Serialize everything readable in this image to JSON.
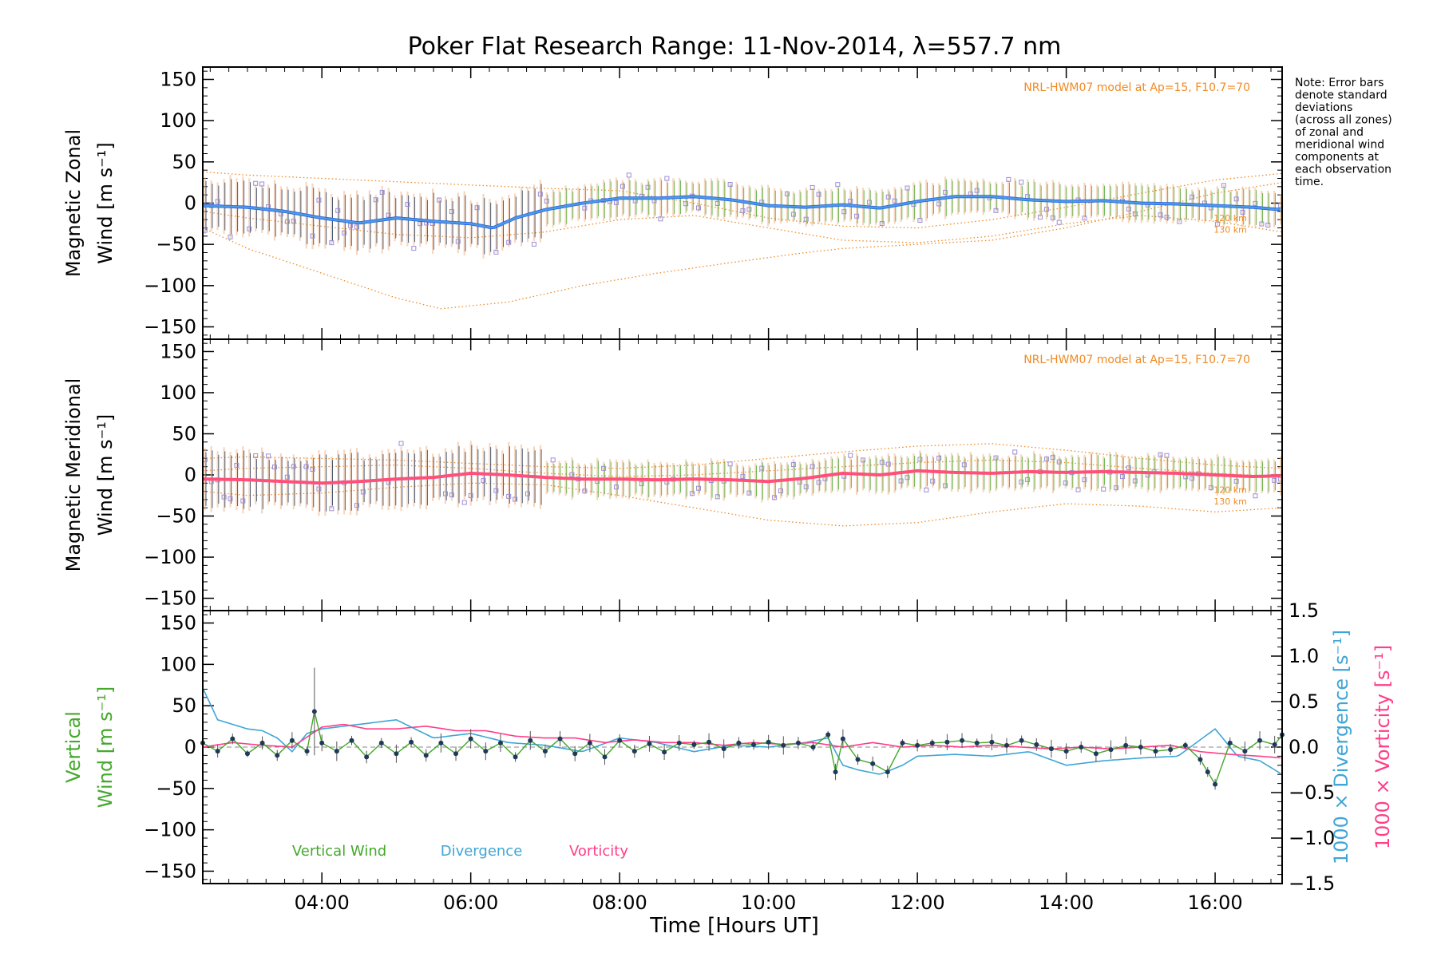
{
  "chart_data": {
    "type": "line",
    "title": "Poker Flat Research Range: 11-Nov-2014, λ=557.7 nm",
    "xlabel": "Time [Hours UT]",
    "xlim": [
      2.4,
      16.9
    ],
    "x_tick_labels": [
      "04:00",
      "06:00",
      "08:00",
      "10:00",
      "12:00",
      "14:00",
      "16:00"
    ],
    "x_tick_values": [
      4,
      6,
      8,
      10,
      12,
      14,
      16
    ],
    "colors": {
      "zonal": "#1f5fe0",
      "zonal_light": "#5aa8e6",
      "meridional": "#ff4f7b",
      "vertical": "#44a82b",
      "divergence": "#3fa5d6",
      "vorticity": "#ff3d88",
      "model": "#f08a24",
      "zone_points": "#9a8fd8",
      "errorbar_dark": "#20385a"
    },
    "note": [
      "Note: Error bars",
      "denote standard",
      "deviations",
      "(across all zones)",
      "of zonal and",
      "meridional wind",
      "components at",
      "each observation",
      "time."
    ],
    "panels": [
      {
        "name": "zonal",
        "ylabel_line1": "Magnetic Zonal",
        "ylabel_line2": "Wind [m s⁻¹]",
        "ylim": [
          -165,
          165
        ],
        "y_tick_labels": [
          "150",
          "100",
          "50",
          "0",
          "−50",
          "−100",
          "−150"
        ],
        "y_tick_values": [
          150,
          100,
          50,
          0,
          -50,
          -100,
          -150
        ],
        "model_label": "NRL-HWM07 model at Ap=15, F10.7=70",
        "km_labels": [
          "120 km",
          "130 km"
        ],
        "series": [
          {
            "x": [
              2.4,
              3.0,
              3.5,
              4.0,
              4.5,
              5.0,
              5.5,
              6.0,
              6.3,
              6.6,
              7.0,
              7.5,
              8.0,
              8.5,
              9.0,
              9.5,
              10.0,
              10.5,
              11.0,
              11.5,
              12.0,
              12.5,
              13.0,
              13.5,
              14.0,
              14.5,
              15.0,
              15.5,
              16.0,
              16.5,
              16.9
            ],
            "y": [
              -3,
              -5,
              -10,
              -18,
              -24,
              -18,
              -22,
              -25,
              -30,
              -18,
              -8,
              0,
              6,
              6,
              8,
              4,
              -3,
              -5,
              -2,
              -6,
              2,
              8,
              8,
              4,
              2,
              3,
              0,
              -1,
              -3,
              -5,
              -8
            ]
          }
        ],
        "model_curves": [
          {
            "x": [
              2.4,
              3.0,
              4.0,
              5.0,
              5.6,
              6.5,
              7.5,
              8.5,
              9.5,
              10.5,
              11.0,
              12.0,
              13.0,
              14.0,
              15.0,
              16.0,
              16.9
            ],
            "y": [
              -30,
              -55,
              -85,
              -115,
              -128,
              -120,
              -100,
              -85,
              -72,
              -60,
              -55,
              -50,
              -45,
              -30,
              -10,
              12,
              25
            ]
          },
          {
            "x": [
              2.4,
              3.0,
              4.0,
              5.0,
              6.0,
              7.0,
              8.0,
              9.0,
              10.0,
              11.0,
              12.0,
              13.0,
              14.0,
              15.0,
              16.0,
              16.9
            ],
            "y": [
              38,
              34,
              30,
              26,
              22,
              18,
              15,
              0,
              -18,
              -28,
              -30,
              -20,
              -5,
              12,
              28,
              36
            ]
          },
          {
            "x": [
              2.4,
              3.0,
              4.0,
              5.0,
              6.0,
              7.0,
              8.0,
              9.0,
              10.0,
              11.0,
              12.0,
              13.0,
              14.0,
              15.0,
              16.0,
              16.9
            ],
            "y": [
              -10,
              -18,
              -28,
              -38,
              -42,
              -35,
              -20,
              -15,
              -30,
              -45,
              -48,
              -40,
              -25,
              -15,
              -22,
              -35
            ]
          }
        ]
      },
      {
        "name": "meridional",
        "ylabel_line1": "Magnetic Meridional",
        "ylabel_line2": "Wind [m s⁻¹]",
        "ylim": [
          -165,
          165
        ],
        "y_tick_labels": [
          "150",
          "100",
          "50",
          "0",
          "−50",
          "−100",
          "−150"
        ],
        "y_tick_values": [
          150,
          100,
          50,
          0,
          -50,
          -100,
          -150
        ],
        "model_label": "NRL-HWM07 model at Ap=15, F10.7=70",
        "km_labels": [
          "120 km",
          "130 km"
        ],
        "series": [
          {
            "x": [
              2.4,
              3.0,
              3.5,
              4.0,
              4.5,
              5.0,
              5.5,
              6.0,
              6.5,
              7.0,
              7.5,
              8.0,
              8.5,
              9.0,
              9.5,
              10.0,
              10.5,
              11.0,
              11.5,
              12.0,
              12.5,
              13.0,
              13.5,
              14.0,
              14.5,
              15.0,
              15.5,
              16.0,
              16.5,
              16.9
            ],
            "y": [
              -5,
              -6,
              -8,
              -10,
              -8,
              -5,
              -3,
              2,
              0,
              -3,
              -5,
              -5,
              -6,
              -5,
              -6,
              -8,
              -4,
              2,
              0,
              5,
              3,
              2,
              4,
              3,
              4,
              3,
              2,
              0,
              -2,
              -1
            ]
          }
        ],
        "model_curves": [
          {
            "x": [
              2.4,
              3.0,
              4.0,
              5.0,
              6.0,
              7.0,
              8.0,
              9.0,
              10.0,
              11.0,
              12.0,
              13.0,
              14.0,
              15.0,
              16.0,
              16.9
            ],
            "y": [
              -20,
              -25,
              -22,
              -15,
              -10,
              -12,
              -25,
              -40,
              -55,
              -62,
              -58,
              -45,
              -35,
              -38,
              -45,
              -40
            ]
          },
          {
            "x": [
              2.4,
              3.0,
              4.0,
              5.0,
              6.0,
              7.0,
              8.0,
              9.0,
              10.0,
              11.0,
              12.0,
              13.0,
              14.0,
              15.0,
              16.0,
              16.9
            ],
            "y": [
              20,
              22,
              20,
              18,
              14,
              10,
              8,
              12,
              20,
              28,
              35,
              38,
              30,
              20,
              12,
              8
            ]
          },
          {
            "x": [
              2.4,
              3.0,
              4.0,
              5.0,
              6.0,
              7.0,
              8.0,
              9.0,
              10.0,
              11.0,
              12.0,
              13.0,
              14.0,
              15.0,
              16.0,
              16.9
            ],
            "y": [
              5,
              8,
              10,
              12,
              8,
              2,
              -2,
              0,
              5,
              10,
              15,
              18,
              15,
              8,
              2,
              -2
            ]
          }
        ]
      },
      {
        "name": "vertical",
        "ylabel_line1": "Vertical",
        "ylabel_line2": "Wind [m s⁻¹]",
        "right_label_divergence": "1000 × Divergence [s⁻¹]",
        "right_label_vorticity": "1000 × Vorticity [s⁻¹]",
        "ylim": [
          -165,
          165
        ],
        "y_tick_labels": [
          "150",
          "100",
          "50",
          "0",
          "−50",
          "−100",
          "−150"
        ],
        "y_tick_values": [
          150,
          100,
          50,
          0,
          -50,
          -100,
          -150
        ],
        "y2lim": [
          -1.5,
          1.5
        ],
        "y2_tick_labels": [
          "1.5",
          "1.0",
          "0.5",
          "0.0",
          "−0.5",
          "−1.0",
          "−1.5"
        ],
        "y2_tick_values": [
          1.5,
          1.0,
          0.5,
          0.0,
          -0.5,
          -1.0,
          -1.5
        ],
        "legend": [
          "Vertical Wind",
          "Divergence",
          "Vorticity"
        ],
        "series": [
          {
            "name": "Vertical Wind",
            "x": [
              2.4,
              2.6,
              2.8,
              3.0,
              3.2,
              3.4,
              3.6,
              3.8,
              3.9,
              4.0,
              4.2,
              4.4,
              4.6,
              4.8,
              5.0,
              5.2,
              5.4,
              5.6,
              5.8,
              6.0,
              6.2,
              6.4,
              6.6,
              6.8,
              7.0,
              7.2,
              7.4,
              7.6,
              7.8,
              8.0,
              8.2,
              8.4,
              8.6,
              8.8,
              9.0,
              9.2,
              9.4,
              9.6,
              9.8,
              10.0,
              10.2,
              10.4,
              10.6,
              10.8,
              10.9,
              11.0,
              11.2,
              11.4,
              11.6,
              11.8,
              12.0,
              12.2,
              12.4,
              12.6,
              12.8,
              13.0,
              13.2,
              13.4,
              13.6,
              13.8,
              14.0,
              14.2,
              14.4,
              14.6,
              14.8,
              15.0,
              15.2,
              15.4,
              15.6,
              15.8,
              15.9,
              16.0,
              16.2,
              16.4,
              16.6,
              16.8,
              16.9
            ],
            "y": [
              5,
              -5,
              10,
              -8,
              5,
              -10,
              8,
              -5,
              43,
              5,
              -5,
              8,
              -12,
              5,
              -8,
              6,
              -10,
              5,
              -8,
              10,
              -5,
              5,
              -12,
              8,
              -5,
              10,
              -8,
              5,
              -12,
              8,
              -5,
              4,
              -6,
              5,
              3,
              6,
              -2,
              5,
              3,
              6,
              2,
              5,
              0,
              15,
              -30,
              10,
              -15,
              -20,
              -30,
              5,
              2,
              5,
              6,
              8,
              5,
              6,
              2,
              8,
              3,
              -2,
              -5,
              0,
              -8,
              -3,
              2,
              0,
              -5,
              -3,
              2,
              -15,
              -30,
              -45,
              5,
              -5,
              8,
              3,
              15
            ]
          },
          {
            "name": "Divergence",
            "x": [
              2.4,
              2.6,
              2.8,
              3.0,
              3.2,
              3.4,
              3.6,
              3.8,
              4.0,
              4.5,
              5.0,
              5.5,
              6.0,
              6.5,
              7.0,
              7.5,
              8.0,
              8.5,
              9.0,
              9.5,
              10.0,
              10.5,
              10.8,
              11.0,
              11.2,
              11.5,
              11.8,
              12.0,
              12.5,
              13.0,
              13.5,
              14.0,
              14.5,
              15.0,
              15.5,
              16.0,
              16.3,
              16.6,
              16.9
            ],
            "y": [
              0.65,
              0.3,
              0.25,
              0.2,
              0.18,
              0.1,
              -0.05,
              0.15,
              0.2,
              0.25,
              0.3,
              0.1,
              0.15,
              0.05,
              0.02,
              -0.05,
              0.1,
              0.05,
              -0.05,
              0.02,
              0.0,
              0.05,
              0.1,
              -0.2,
              -0.25,
              -0.3,
              -0.2,
              -0.1,
              -0.08,
              -0.1,
              -0.05,
              -0.2,
              -0.15,
              -0.12,
              -0.1,
              0.2,
              -0.1,
              -0.15,
              -0.3
            ]
          },
          {
            "name": "Vorticity",
            "x": [
              2.4,
              2.8,
              3.2,
              3.6,
              4.0,
              4.3,
              4.6,
              5.0,
              5.4,
              5.8,
              6.2,
              6.6,
              7.0,
              7.4,
              7.8,
              8.2,
              8.6,
              9.0,
              9.4,
              9.8,
              10.2,
              10.6,
              11.0,
              11.4,
              11.8,
              12.2,
              12.6,
              13.0,
              13.4,
              13.8,
              14.2,
              14.6,
              15.0,
              15.4,
              15.8,
              16.2,
              16.6,
              16.9
            ],
            "y": [
              0.0,
              0.05,
              0.02,
              0.0,
              0.22,
              0.25,
              0.2,
              0.2,
              0.23,
              0.18,
              0.18,
              0.12,
              0.1,
              0.1,
              0.05,
              0.08,
              0.05,
              0.05,
              0.02,
              0.05,
              0.03,
              0.05,
              0.0,
              0.05,
              0.0,
              0.02,
              0.0,
              0.02,
              0.0,
              -0.02,
              0.0,
              -0.02,
              0.0,
              0.02,
              -0.05,
              -0.08,
              -0.1,
              -0.12
            ]
          }
        ]
      }
    ]
  }
}
